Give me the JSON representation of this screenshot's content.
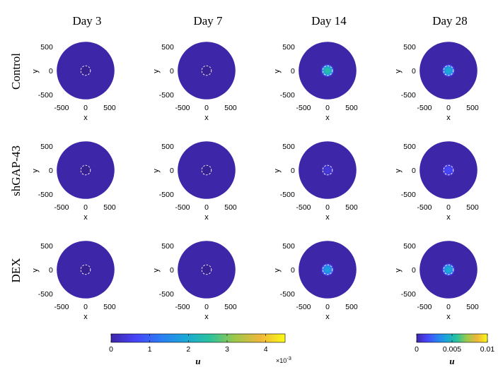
{
  "chart_data": {
    "type": "heatmap",
    "title": "",
    "columns": [
      "Day 3",
      "Day 7",
      "Day 14",
      "Day 28"
    ],
    "rows": [
      "Control",
      "shGAP-43",
      "DEX"
    ],
    "xlabel": "x",
    "ylabel": "y",
    "xlim": [
      -650,
      650
    ],
    "ylim": [
      -650,
      650
    ],
    "x_ticks": [
      "-500",
      "0",
      "500"
    ],
    "y_ticks": [
      "500",
      "0",
      "-500"
    ],
    "domain_radius": 600,
    "inner_region_radius": 100,
    "peak_values_approx": [
      [
        0.0,
        0.0,
        0.0025,
        0.0045
      ],
      [
        0.0,
        0.0,
        0.0004,
        0.0016
      ],
      [
        0.0,
        0.0,
        0.0018,
        0.0045
      ]
    ],
    "colorbars": [
      {
        "label": "u",
        "range": [
          0,
          0.0045
        ],
        "tick_values": [
          0,
          1,
          2,
          3,
          4
        ],
        "tick_labels": [
          "0",
          "1",
          "2",
          "3",
          "4"
        ],
        "scale_note": "×10",
        "scale_exponent": "-3",
        "applies_to_columns": [
          "Day 3",
          "Day 7",
          "Day 14"
        ]
      },
      {
        "label": "u",
        "range": [
          0,
          0.01
        ],
        "tick_values": [
          0,
          0.005,
          0.01
        ],
        "tick_labels": [
          "0",
          "0.005",
          "0.01"
        ],
        "applies_to_columns": [
          "Day 28"
        ]
      }
    ],
    "colormap": [
      "#3e26a8",
      "#4743f8",
      "#2a7ff4",
      "#1aa8d6",
      "#2bc39c",
      "#9dc84a",
      "#f1b73a",
      "#f9fb15"
    ]
  }
}
